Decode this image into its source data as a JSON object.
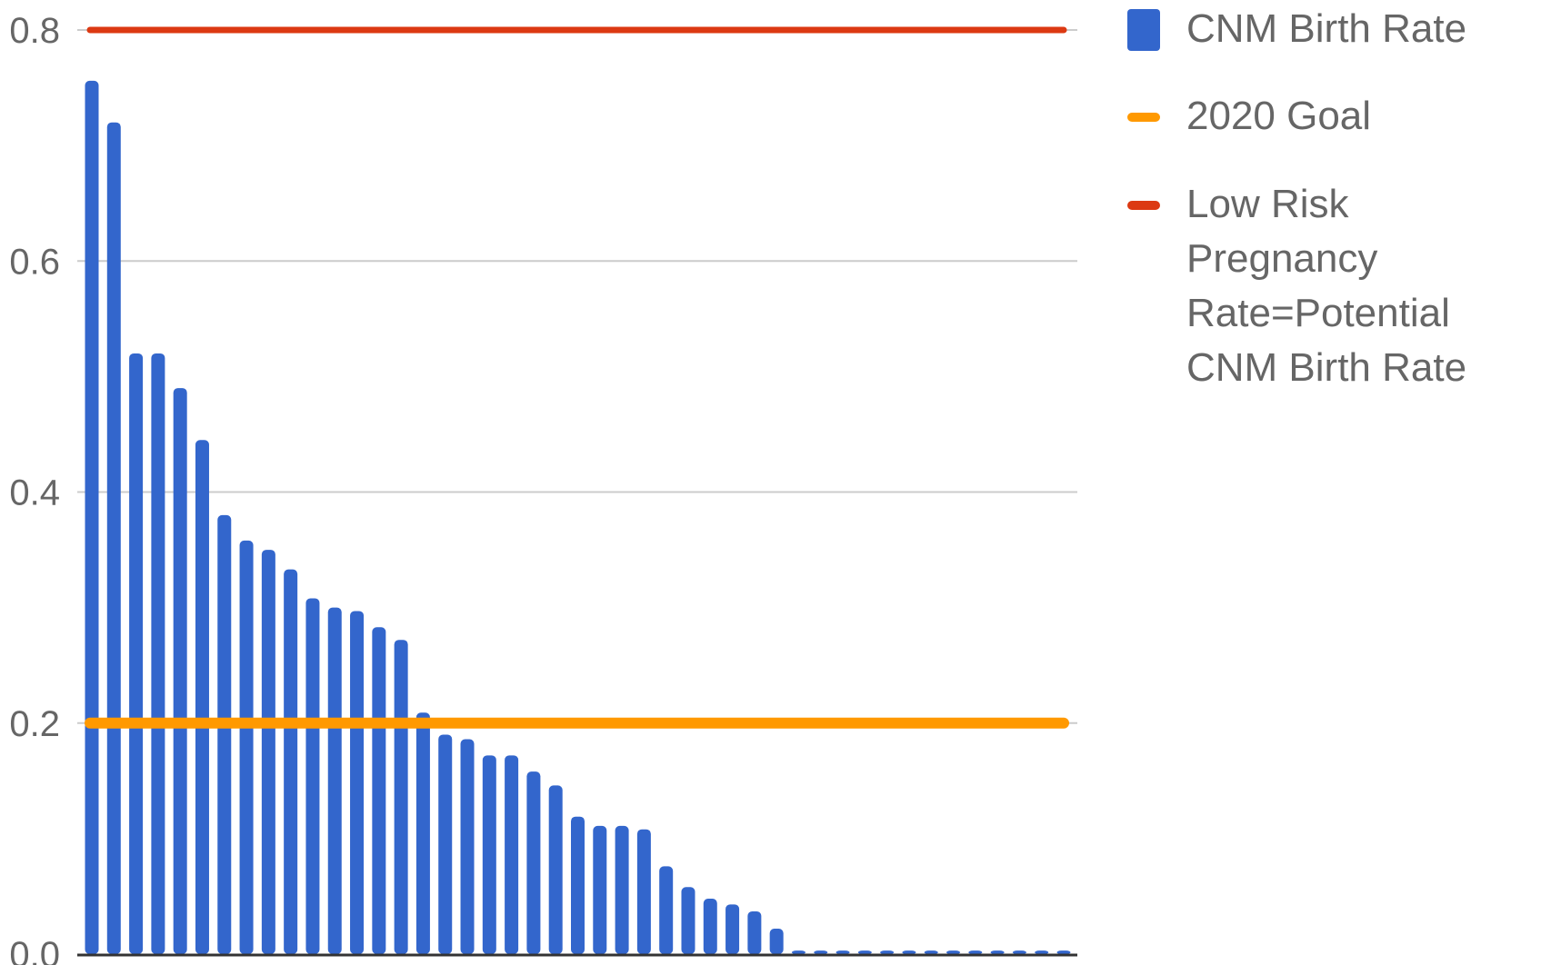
{
  "chart_data": {
    "type": "bar",
    "title": "",
    "xlabel": "",
    "ylabel": "",
    "ylim": [
      0,
      0.8
    ],
    "yticks": [
      "0.0",
      "0.2",
      "0.4",
      "0.6",
      "0.8"
    ],
    "grid": true,
    "legend_position": "right",
    "series": [
      {
        "name": "CNM Birth Rate",
        "type": "bar",
        "color": "#3366cc",
        "values": [
          0.756,
          0.72,
          0.52,
          0.52,
          0.49,
          0.445,
          0.38,
          0.358,
          0.35,
          0.333,
          0.308,
          0.3,
          0.297,
          0.283,
          0.272,
          0.209,
          0.19,
          0.186,
          0.172,
          0.172,
          0.158,
          0.146,
          0.119,
          0.111,
          0.111,
          0.108,
          0.076,
          0.058,
          0.048,
          0.043,
          0.037,
          0.022,
          0.003,
          0.003,
          0.003,
          0.003,
          0.003,
          0.003,
          0.003,
          0.003,
          0.003,
          0.003,
          0.003,
          0.003,
          0.003
        ]
      },
      {
        "name": "2020 Goal",
        "type": "line",
        "color": "#ff9900",
        "value": 0.2
      },
      {
        "name": "Low Risk Pregnancy Rate=Potential CNM Birth Rate",
        "type": "line",
        "color": "#dc3912",
        "value": 0.8
      }
    ]
  },
  "legend": {
    "items": [
      {
        "label": "CNM Birth Rate",
        "color": "#3366cc"
      },
      {
        "label": "2020 Goal",
        "color": "#ff9900"
      },
      {
        "label": "Low Risk Pregnancy Rate=Potential CNM Birth Rate",
        "color": "#dc3912"
      }
    ]
  }
}
